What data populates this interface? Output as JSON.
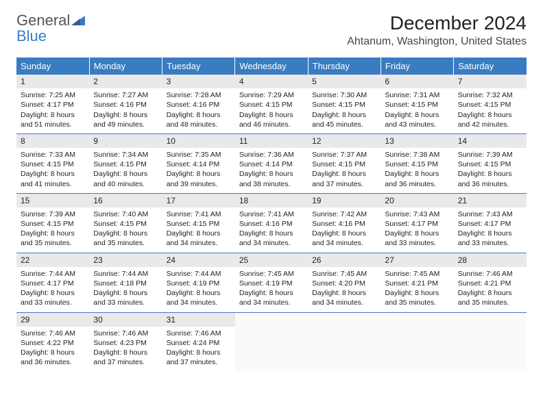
{
  "logo": {
    "word1": "General",
    "word2": "Blue"
  },
  "title": "December 2024",
  "location": "Ahtanum, Washington, United States",
  "colors": {
    "header_bg": "#3a7cc2",
    "header_text": "#ffffff",
    "daynum_bg": "#e9e9e9",
    "rule": "#3a7cc2",
    "body_text": "#222222",
    "page_bg": "#ffffff",
    "logo_gray": "#555555",
    "logo_blue": "#3a7cc2"
  },
  "typography": {
    "title_fontsize": 28,
    "location_fontsize": 16,
    "dayheader_fontsize": 13,
    "daynum_fontsize": 12,
    "cell_fontsize": 10.5,
    "logo_fontsize": 22
  },
  "weekdays": [
    "Sunday",
    "Monday",
    "Tuesday",
    "Wednesday",
    "Thursday",
    "Friday",
    "Saturday"
  ],
  "weeks": [
    [
      {
        "n": "1",
        "sr": "7:25 AM",
        "ss": "4:17 PM",
        "dl": "8 hours and 51 minutes."
      },
      {
        "n": "2",
        "sr": "7:27 AM",
        "ss": "4:16 PM",
        "dl": "8 hours and 49 minutes."
      },
      {
        "n": "3",
        "sr": "7:28 AM",
        "ss": "4:16 PM",
        "dl": "8 hours and 48 minutes."
      },
      {
        "n": "4",
        "sr": "7:29 AM",
        "ss": "4:15 PM",
        "dl": "8 hours and 46 minutes."
      },
      {
        "n": "5",
        "sr": "7:30 AM",
        "ss": "4:15 PM",
        "dl": "8 hours and 45 minutes."
      },
      {
        "n": "6",
        "sr": "7:31 AM",
        "ss": "4:15 PM",
        "dl": "8 hours and 43 minutes."
      },
      {
        "n": "7",
        "sr": "7:32 AM",
        "ss": "4:15 PM",
        "dl": "8 hours and 42 minutes."
      }
    ],
    [
      {
        "n": "8",
        "sr": "7:33 AM",
        "ss": "4:15 PM",
        "dl": "8 hours and 41 minutes."
      },
      {
        "n": "9",
        "sr": "7:34 AM",
        "ss": "4:15 PM",
        "dl": "8 hours and 40 minutes."
      },
      {
        "n": "10",
        "sr": "7:35 AM",
        "ss": "4:14 PM",
        "dl": "8 hours and 39 minutes."
      },
      {
        "n": "11",
        "sr": "7:36 AM",
        "ss": "4:14 PM",
        "dl": "8 hours and 38 minutes."
      },
      {
        "n": "12",
        "sr": "7:37 AM",
        "ss": "4:15 PM",
        "dl": "8 hours and 37 minutes."
      },
      {
        "n": "13",
        "sr": "7:38 AM",
        "ss": "4:15 PM",
        "dl": "8 hours and 36 minutes."
      },
      {
        "n": "14",
        "sr": "7:39 AM",
        "ss": "4:15 PM",
        "dl": "8 hours and 36 minutes."
      }
    ],
    [
      {
        "n": "15",
        "sr": "7:39 AM",
        "ss": "4:15 PM",
        "dl": "8 hours and 35 minutes."
      },
      {
        "n": "16",
        "sr": "7:40 AM",
        "ss": "4:15 PM",
        "dl": "8 hours and 35 minutes."
      },
      {
        "n": "17",
        "sr": "7:41 AM",
        "ss": "4:15 PM",
        "dl": "8 hours and 34 minutes."
      },
      {
        "n": "18",
        "sr": "7:41 AM",
        "ss": "4:16 PM",
        "dl": "8 hours and 34 minutes."
      },
      {
        "n": "19",
        "sr": "7:42 AM",
        "ss": "4:16 PM",
        "dl": "8 hours and 34 minutes."
      },
      {
        "n": "20",
        "sr": "7:43 AM",
        "ss": "4:17 PM",
        "dl": "8 hours and 33 minutes."
      },
      {
        "n": "21",
        "sr": "7:43 AM",
        "ss": "4:17 PM",
        "dl": "8 hours and 33 minutes."
      }
    ],
    [
      {
        "n": "22",
        "sr": "7:44 AM",
        "ss": "4:17 PM",
        "dl": "8 hours and 33 minutes."
      },
      {
        "n": "23",
        "sr": "7:44 AM",
        "ss": "4:18 PM",
        "dl": "8 hours and 33 minutes."
      },
      {
        "n": "24",
        "sr": "7:44 AM",
        "ss": "4:19 PM",
        "dl": "8 hours and 34 minutes."
      },
      {
        "n": "25",
        "sr": "7:45 AM",
        "ss": "4:19 PM",
        "dl": "8 hours and 34 minutes."
      },
      {
        "n": "26",
        "sr": "7:45 AM",
        "ss": "4:20 PM",
        "dl": "8 hours and 34 minutes."
      },
      {
        "n": "27",
        "sr": "7:45 AM",
        "ss": "4:21 PM",
        "dl": "8 hours and 35 minutes."
      },
      {
        "n": "28",
        "sr": "7:46 AM",
        "ss": "4:21 PM",
        "dl": "8 hours and 35 minutes."
      }
    ],
    [
      {
        "n": "29",
        "sr": "7:46 AM",
        "ss": "4:22 PM",
        "dl": "8 hours and 36 minutes."
      },
      {
        "n": "30",
        "sr": "7:46 AM",
        "ss": "4:23 PM",
        "dl": "8 hours and 37 minutes."
      },
      {
        "n": "31",
        "sr": "7:46 AM",
        "ss": "4:24 PM",
        "dl": "8 hours and 37 minutes."
      },
      null,
      null,
      null,
      null
    ]
  ],
  "labels": {
    "sunrise": "Sunrise:",
    "sunset": "Sunset:",
    "daylight": "Daylight:"
  }
}
